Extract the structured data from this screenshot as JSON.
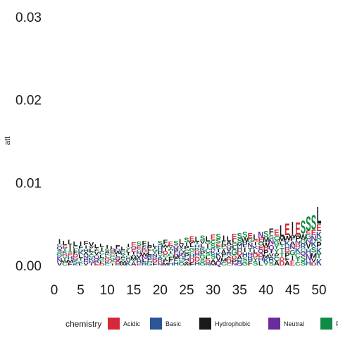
{
  "chart_data": {
    "type": "sequence-logo",
    "title": "",
    "xlabel": "",
    "ylabel": "att",
    "xlim": [
      0,
      50
    ],
    "ylim": [
      0,
      0.03
    ],
    "x_ticks": [
      "0",
      "5",
      "10",
      "15",
      "20",
      "25",
      "30",
      "35",
      "40",
      "45",
      "50"
    ],
    "y_ticks": [
      "0.00",
      "0.01",
      "0.02",
      "0.03"
    ],
    "grid": false,
    "legend_position": "bottom",
    "legend_title": "chemistry",
    "legend": [
      {
        "name": "Acidic",
        "color": "#d62839"
      },
      {
        "name": "Basic",
        "color": "#2a5599"
      },
      {
        "name": "Hydrophobic",
        "color": "#1a1a1a"
      },
      {
        "name": "Neutral",
        "color": "#6a2c9e"
      },
      {
        "name": "Polar",
        "color": "#0f8b43"
      }
    ],
    "positions": [
      1,
      2,
      3,
      4,
      5,
      6,
      7,
      8,
      9,
      10,
      11,
      12,
      13,
      14,
      15,
      16,
      17,
      18,
      19,
      20,
      21,
      22,
      23,
      24,
      25,
      26,
      27,
      28,
      29,
      30,
      31,
      32,
      33,
      34,
      35,
      36,
      37,
      38,
      39,
      40,
      41,
      42,
      43,
      44,
      45,
      46,
      47,
      48,
      49,
      50
    ],
    "column_height": [
      0.0032,
      0.003,
      0.0031,
      0.0029,
      0.0029,
      0.003,
      0.0028,
      0.0026,
      0.0027,
      0.0025,
      0.0024,
      0.0025,
      0.0023,
      0.0027,
      0.0028,
      0.0029,
      0.003,
      0.0029,
      0.0027,
      0.003,
      0.0031,
      0.0029,
      0.003,
      0.0032,
      0.0034,
      0.0036,
      0.0035,
      0.0037,
      0.0036,
      0.0038,
      0.0039,
      0.0037,
      0.0036,
      0.0039,
      0.004,
      0.0041,
      0.004,
      0.0038,
      0.0041,
      0.0042,
      0.0045,
      0.0044,
      0.005,
      0.0052,
      0.0054,
      0.0053,
      0.0055,
      0.006,
      0.0062,
      0.0072
    ],
    "top_residue": [
      "I",
      "L",
      "L",
      "L",
      "I",
      "F",
      "V",
      "L",
      "L",
      "I",
      "L",
      "F",
      "L",
      "I",
      "E",
      "S",
      "F",
      "L",
      "L",
      "S",
      "F",
      "E",
      "S",
      "L",
      "S",
      "E",
      "L",
      "S",
      "L",
      "E",
      "S",
      "I",
      "L",
      "E",
      "S",
      "S",
      "E",
      "L",
      "N",
      "S",
      "F",
      "E",
      "L",
      "E",
      "I",
      "E",
      "S",
      "S",
      "S",
      "L"
    ]
  }
}
